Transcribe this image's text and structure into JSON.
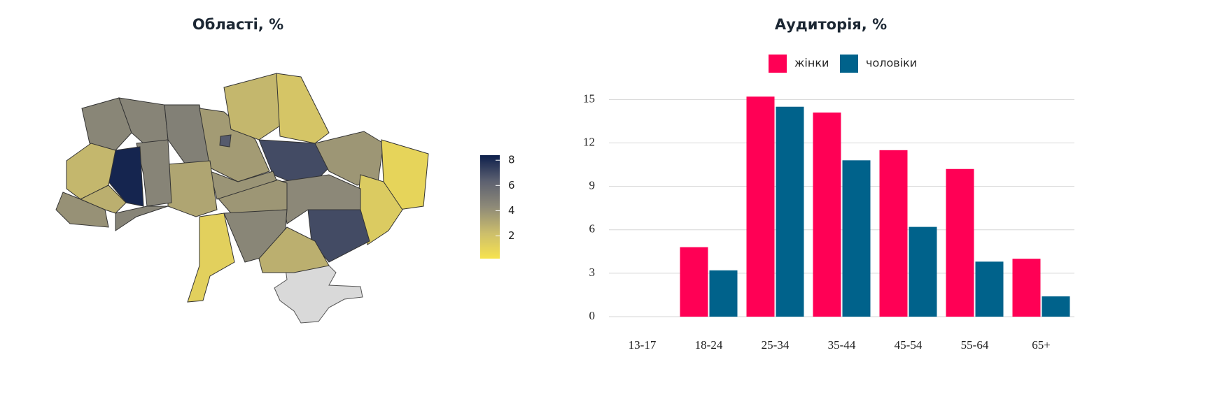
{
  "chart_data": [
    {
      "type": "choropleth",
      "title": "Області, %",
      "values": [
        4.5,
        4.6,
        4.8,
        3.6,
        6.5,
        2.5,
        1.8,
        7.0,
        3.8,
        1.0,
        1.5,
        7.0,
        4.4,
        3.8,
        3.9,
        3.2,
        4.6,
        8.2,
        2.5,
        4.0,
        2.8,
        4.6,
        1.2,
        4.5,
        2.8
      ],
      "colorscale": [
        "#f7e34f",
        "#cbbd6c",
        "#8e8a78",
        "#5c6070",
        "#0d1f4b"
      ],
      "zlim": [
        0.2,
        8.4
      ],
      "zticks": [
        2,
        4,
        6,
        8
      ]
    },
    {
      "type": "bar",
      "title": "Аудиторія, %",
      "categories": [
        "13-17",
        "18-24",
        "25-34",
        "35-44",
        "45-54",
        "55-64",
        "65+"
      ],
      "series": [
        {
          "name": "жінки",
          "color": "#ff0055",
          "values": [
            0,
            4.8,
            15.2,
            14.1,
            11.5,
            10.2,
            4.0
          ]
        },
        {
          "name": "чоловіки",
          "color": "#00628b",
          "values": [
            0,
            3.2,
            14.5,
            10.8,
            6.2,
            3.8,
            1.4
          ]
        }
      ],
      "ylim": [
        0,
        15.5
      ],
      "yticks": [
        0,
        3,
        6,
        9,
        12,
        15
      ],
      "grid": true,
      "legend": "top"
    }
  ]
}
